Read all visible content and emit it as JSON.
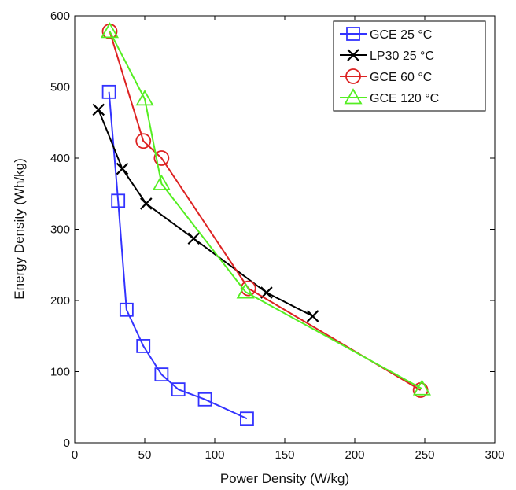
{
  "chart_data": {
    "type": "line",
    "title": "",
    "xlabel": "Power Density (W/kg)",
    "ylabel": "Energy Density (Wh/kg)",
    "xlim": [
      0,
      300
    ],
    "ylim": [
      0,
      600
    ],
    "xticks": [
      0,
      50,
      100,
      150,
      200,
      250,
      300
    ],
    "yticks": [
      0,
      100,
      200,
      300,
      400,
      500,
      600
    ],
    "grid": false,
    "legend_position": "top-right",
    "series": [
      {
        "name": "GCE 25 °C",
        "color": "#3333ff",
        "marker": "square",
        "x": [
          24.5,
          31,
          37,
          49,
          62,
          74,
          93,
          123
        ],
        "y": [
          493,
          340,
          187,
          136,
          96,
          75,
          61,
          34
        ]
      },
      {
        "name": "LP30 25 °C",
        "color": "#000000",
        "marker": "x",
        "x": [
          17,
          34,
          51,
          85,
          137,
          170
        ],
        "y": [
          468,
          385,
          336,
          287,
          211,
          178
        ]
      },
      {
        "name": "GCE 60 °C",
        "color": "#dd2222",
        "marker": "circle",
        "x": [
          25,
          49,
          62,
          124,
          247
        ],
        "y": [
          578,
          424,
          400,
          217,
          74
        ]
      },
      {
        "name": "GCE 120 °C",
        "color": "#55ee22",
        "marker": "triangle",
        "x": [
          25,
          50,
          62,
          122,
          248
        ],
        "y": [
          578,
          483,
          364,
          212,
          76
        ]
      }
    ]
  }
}
